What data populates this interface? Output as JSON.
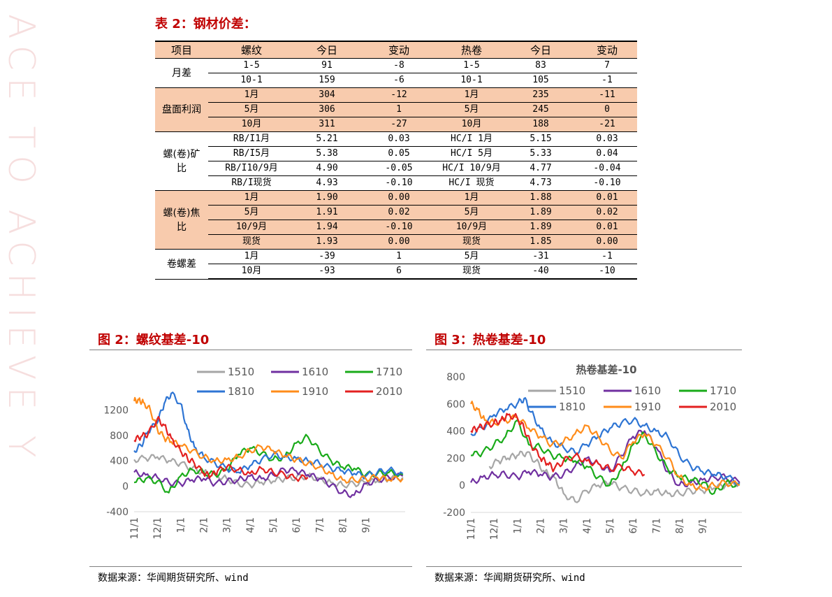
{
  "watermark": "ACE TO ACHIEVE Y",
  "table": {
    "title": "表 2：钢材价差：",
    "headers": [
      "项目",
      "螺纹",
      "今日",
      "变动",
      "热卷",
      "今日",
      "变动"
    ],
    "rows": [
      {
        "group": "月差",
        "span": 2,
        "band": false,
        "cells": [
          "1-5",
          "91",
          "-8",
          "1-5",
          "83",
          "7"
        ]
      },
      {
        "band": false,
        "cells": [
          "10-1",
          "159",
          "-6",
          "10-1",
          "105",
          "-1"
        ]
      },
      {
        "group": "盘面利润",
        "span": 3,
        "band": true,
        "cells": [
          "1月",
          "304",
          "-12",
          "1月",
          "235",
          "-11"
        ]
      },
      {
        "band": true,
        "cells": [
          "5月",
          "306",
          "1",
          "5月",
          "245",
          "0"
        ]
      },
      {
        "band": true,
        "cells": [
          "10月",
          "311",
          "-27",
          "10月",
          "188",
          "-21"
        ]
      },
      {
        "group": "螺(卷)矿\n比",
        "span": 4,
        "band": false,
        "cells": [
          "RB/I1月",
          "5.21",
          "0.03",
          "HC/I 1月",
          "5.15",
          "0.03"
        ]
      },
      {
        "band": false,
        "cells": [
          "RB/I5月",
          "5.38",
          "0.05",
          "HC/I 5月",
          "5.33",
          "0.04"
        ]
      },
      {
        "band": false,
        "cells": [
          "RB/I10/9月",
          "4.90",
          "-0.05",
          "HC/I 10/9月",
          "4.77",
          "-0.04"
        ]
      },
      {
        "band": false,
        "cells": [
          "RB/I现货",
          "4.93",
          "-0.10",
          "HC/I 现货",
          "4.73",
          "-0.10"
        ]
      },
      {
        "group": "螺(卷)焦\n比",
        "span": 4,
        "band": true,
        "cells": [
          "1月",
          "1.90",
          "0.00",
          "1月",
          "1.88",
          "0.01"
        ]
      },
      {
        "band": true,
        "cells": [
          "5月",
          "1.91",
          "0.02",
          "5月",
          "1.89",
          "0.02"
        ]
      },
      {
        "band": true,
        "cells": [
          "10/9月",
          "1.94",
          "-0.10",
          "10/9月",
          "1.89",
          "0.01"
        ]
      },
      {
        "band": true,
        "cells": [
          "现货",
          "1.93",
          "0.00",
          "现货",
          "1.85",
          "0.00"
        ]
      },
      {
        "group": "卷螺差",
        "span": 2,
        "band": false,
        "cells": [
          "1月",
          "-39",
          "1",
          "5月",
          "-31",
          "-1"
        ]
      },
      {
        "band": false,
        "cells": [
          "10月",
          "-93",
          "6",
          "现货",
          "-40",
          "-10"
        ]
      }
    ]
  },
  "figures": [
    {
      "title": "图 2：螺纹基差-10",
      "source": "数据来源：华闻期货研究所、wind"
    },
    {
      "title": "图 3：热卷基差-10",
      "source": "数据来源：华闻期货研究所、wind"
    }
  ],
  "chart_data": [
    {
      "type": "line",
      "title": "",
      "xlabel": "",
      "ylabel": "",
      "ylim": [
        -400,
        1600
      ],
      "yticks": [
        -400,
        0,
        400,
        800,
        1200
      ],
      "x_ticks": [
        "11/1",
        "12/1",
        "1/1",
        "2/1",
        "3/1",
        "4/1",
        "5/1",
        "6/1",
        "7/1",
        "8/1",
        "9/1"
      ],
      "legend": "top",
      "x_range": [
        0,
        11.7
      ],
      "series": [
        {
          "name": "1510",
          "color": "#a6a6a6",
          "x": [
            0,
            0.5,
            1,
            1.5,
            2,
            2.5,
            3,
            3.5,
            4,
            4.5,
            5,
            5.5,
            6,
            6.5,
            7,
            7.5,
            8,
            8.5,
            9,
            9.5,
            10,
            10.5,
            11,
            11.6
          ],
          "values": [
            420,
            440,
            460,
            400,
            360,
            280,
            220,
            180,
            120,
            40,
            20,
            60,
            80,
            120,
            140,
            160,
            120,
            60,
            20,
            40,
            60,
            80,
            120,
            140
          ]
        },
        {
          "name": "1610",
          "color": "#7030a0",
          "x": [
            0,
            0.5,
            1,
            1.5,
            2,
            2.5,
            3,
            3.5,
            4,
            4.5,
            5,
            5.5,
            6,
            6.5,
            7,
            7.5,
            8,
            8.5,
            9,
            9.5,
            10,
            10.5,
            11,
            11.6
          ],
          "values": [
            220,
            180,
            140,
            60,
            40,
            100,
            120,
            40,
            80,
            100,
            160,
            120,
            180,
            260,
            240,
            180,
            120,
            20,
            -100,
            -140,
            40,
            100,
            140,
            160
          ]
        },
        {
          "name": "1710",
          "color": "#1aab1a",
          "x": [
            0,
            0.5,
            1,
            1.5,
            2,
            2.5,
            3,
            3.5,
            4,
            4.5,
            5,
            5.5,
            6,
            6.5,
            7,
            7.5,
            8,
            8.5,
            9,
            9.5,
            10,
            10.5,
            11,
            11.6
          ],
          "values": [
            60,
            120,
            80,
            -100,
            160,
            260,
            220,
            180,
            260,
            500,
            600,
            520,
            420,
            460,
            680,
            780,
            560,
            400,
            300,
            280,
            180,
            200,
            220,
            180
          ]
        },
        {
          "name": "1810",
          "color": "#2e75d4",
          "x": [
            0,
            0.3,
            0.6,
            1,
            1.3,
            1.6,
            2,
            2.3,
            2.6,
            3,
            3.5,
            4,
            4.5,
            5,
            5.5,
            6,
            6.5,
            7,
            7.5,
            8,
            8.5,
            9,
            9.5,
            10,
            10.5,
            11,
            11.6
          ],
          "values": [
            560,
            640,
            860,
            1000,
            1300,
            1460,
            1300,
            900,
            620,
            460,
            360,
            280,
            220,
            320,
            420,
            500,
            460,
            440,
            400,
            360,
            280,
            240,
            200,
            160,
            220,
            260,
            200
          ]
        },
        {
          "name": "1910",
          "color": "#ff8c1a",
          "x": [
            0,
            0.2,
            0.4,
            0.7,
            1,
            1.3,
            1.6,
            2,
            2.5,
            3,
            3.5,
            4,
            4.5,
            5,
            5.5,
            6,
            6.5,
            7,
            7.5,
            8,
            8.5,
            9,
            9.5,
            10,
            10.5,
            11,
            11.6
          ],
          "values": [
            1340,
            1360,
            1320,
            1200,
            900,
            760,
            700,
            640,
            560,
            460,
            400,
            420,
            460,
            560,
            620,
            560,
            480,
            420,
            360,
            300,
            200,
            100,
            100,
            120,
            140,
            100,
            120
          ]
        },
        {
          "name": "2010",
          "color": "#e32020",
          "x": [
            0,
            0.3,
            0.6,
            1,
            1.3,
            1.6,
            2,
            2.3,
            2.6,
            3,
            3.3,
            3.6,
            4,
            4.5,
            5,
            5.5,
            6,
            6.5,
            7,
            7.5
          ],
          "values": [
            720,
            780,
            820,
            1060,
            960,
            760,
            560,
            440,
            360,
            200,
            160,
            240,
            300,
            260,
            200,
            280,
            220,
            180,
            120,
            140
          ]
        }
      ]
    },
    {
      "type": "line",
      "title": "热卷基差-10",
      "xlabel": "",
      "ylabel": "",
      "ylim": [
        -200,
        800
      ],
      "yticks": [
        -200,
        0,
        200,
        400,
        600,
        800
      ],
      "x_ticks": [
        "11/1",
        "12/1",
        "1/1",
        "2/1",
        "3/1",
        "4/1",
        "5/1",
        "6/1",
        "7/1",
        "8/1",
        "9/1"
      ],
      "legend": "top",
      "x_range": [
        0,
        11.7
      ],
      "series": [
        {
          "name": "1510",
          "color": "#a6a6a6",
          "x": [
            0.8,
            1.2,
            1.6,
            2.0,
            2.4,
            2.8,
            3.2,
            3.6,
            4.0,
            4.5,
            5,
            5.5,
            6,
            6.5,
            7,
            7.5,
            8,
            8.5,
            9,
            9.5,
            10,
            10.5,
            11,
            11.6
          ],
          "values": [
            140,
            180,
            200,
            220,
            240,
            180,
            100,
            60,
            -60,
            -120,
            -40,
            0,
            20,
            -20,
            -40,
            -60,
            -40,
            -60,
            -60,
            -40,
            -40,
            -20,
            0,
            20
          ]
        },
        {
          "name": "1610",
          "color": "#7030a0",
          "x": [
            0,
            0.5,
            1,
            1.5,
            2,
            2.5,
            3,
            3.5,
            4,
            4.5,
            5,
            5.5,
            6,
            6.5,
            7,
            7.5,
            8,
            8.5,
            9,
            9.5,
            10,
            10.5,
            11,
            11.6
          ],
          "values": [
            20,
            60,
            80,
            80,
            60,
            100,
            80,
            60,
            80,
            140,
            200,
            160,
            100,
            220,
            360,
            400,
            280,
            100,
            0,
            20,
            40,
            60,
            60,
            20
          ]
        },
        {
          "name": "1710",
          "color": "#1aab1a",
          "x": [
            0,
            0.5,
            1,
            1.5,
            2,
            2.5,
            3,
            3.5,
            4,
            4.5,
            5,
            5.5,
            6,
            6.5,
            7,
            7.5,
            8,
            8.5,
            9,
            9.5,
            10,
            10.5,
            11,
            11.6
          ],
          "values": [
            220,
            240,
            300,
            360,
            480,
            300,
            280,
            220,
            200,
            180,
            140,
            60,
            0,
            120,
            300,
            380,
            240,
            120,
            60,
            40,
            20,
            -60,
            20,
            0
          ]
        },
        {
          "name": "1810",
          "color": "#2e75d4",
          "x": [
            0,
            0.5,
            1,
            1.5,
            2,
            2.3,
            2.6,
            3,
            3.5,
            4,
            4.5,
            5,
            5.5,
            6,
            6.5,
            7,
            7.5,
            8,
            8.5,
            9,
            9.5,
            10,
            10.5,
            11,
            11.6
          ],
          "values": [
            380,
            420,
            520,
            560,
            600,
            640,
            540,
            420,
            320,
            280,
            240,
            300,
            360,
            420,
            460,
            480,
            440,
            400,
            360,
            220,
            140,
            100,
            80,
            60,
            20
          ]
        },
        {
          "name": "1910",
          "color": "#ff8c1a",
          "x": [
            0,
            0.3,
            0.6,
            1,
            1.5,
            2,
            2.5,
            3,
            3.5,
            4,
            4.5,
            5,
            5.5,
            6,
            6.5,
            7,
            7.5,
            8,
            8.5,
            9,
            9.5,
            10,
            10.5,
            11,
            11.6
          ],
          "values": [
            600,
            560,
            480,
            460,
            480,
            500,
            420,
            360,
            300,
            320,
            380,
            440,
            360,
            260,
            200,
            320,
            380,
            300,
            200,
            60,
            0,
            -20,
            0,
            20,
            0
          ]
        },
        {
          "name": "2010",
          "color": "#e32020",
          "x": [
            0,
            0.3,
            0.6,
            1,
            1.3,
            1.6,
            2,
            2.3,
            2.6,
            3,
            3.3,
            3.6,
            4,
            4.5,
            5,
            5.5,
            6,
            6.5,
            7,
            7.5
          ],
          "values": [
            400,
            420,
            440,
            460,
            480,
            520,
            500,
            420,
            300,
            200,
            160,
            120,
            180,
            220,
            180,
            160,
            120,
            140,
            100,
            80
          ]
        }
      ]
    }
  ]
}
